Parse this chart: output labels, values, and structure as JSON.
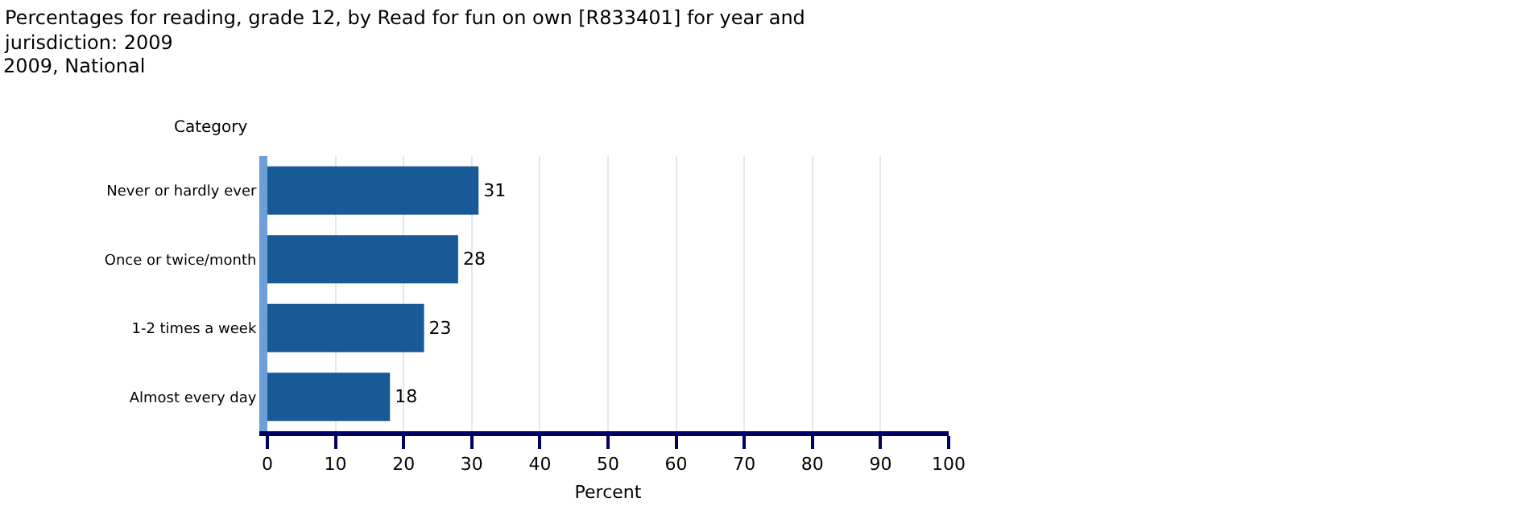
{
  "chart_data": {
    "type": "bar",
    "orientation": "horizontal",
    "title": "Percentages for reading, grade 12, by Read for fun on own [R833401] for year and jurisdiction: 2009",
    "subtitle": "2009, National",
    "ylabel": "Category",
    "xlabel": "Percent",
    "categories": [
      "Never or hardly ever",
      "Once or twice/month",
      "1-2 times a week",
      "Almost every day"
    ],
    "values": [
      31,
      28,
      23,
      18
    ],
    "color": "#185a96",
    "xlim": [
      0,
      100
    ],
    "xticks": [
      0,
      10,
      20,
      30,
      40,
      50,
      60,
      70,
      80,
      90,
      100
    ],
    "grid": "x",
    "data_labels": true
  }
}
